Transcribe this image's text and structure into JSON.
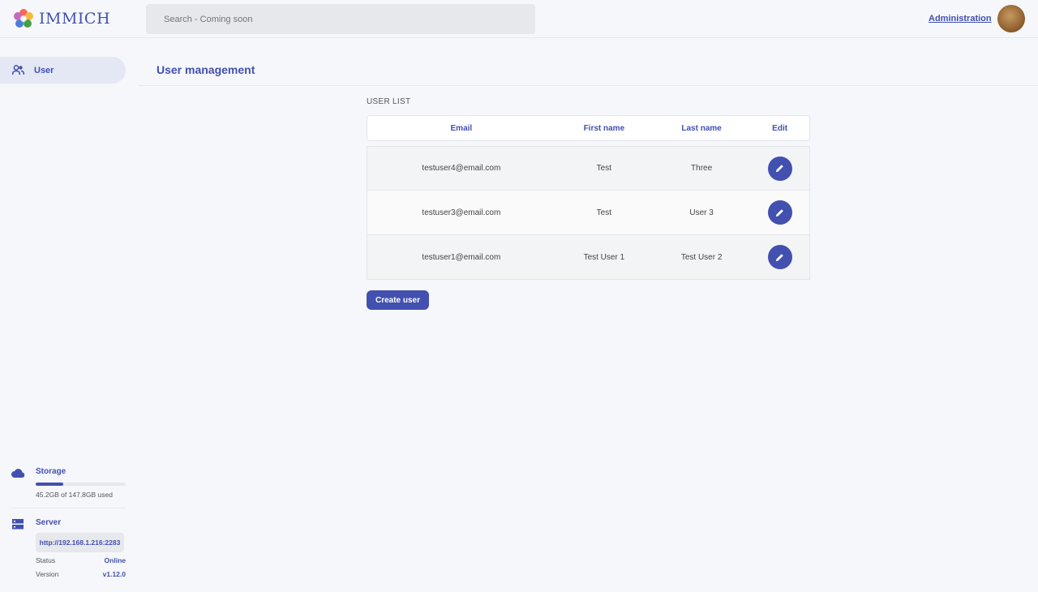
{
  "header": {
    "logo_text": "IMMICH",
    "search_placeholder": "Search - Coming soon",
    "admin_link": "Administration"
  },
  "sidebar": {
    "items": [
      {
        "label": "User",
        "icon": "users-icon"
      }
    ]
  },
  "main": {
    "title": "User management",
    "section_label": "USER LIST",
    "columns": [
      "Email",
      "First name",
      "Last name",
      "Edit"
    ],
    "rows": [
      {
        "email": "testuser4@email.com",
        "first": "Test",
        "last": "Three"
      },
      {
        "email": "testuser3@email.com",
        "first": "Test",
        "last": "User 3"
      },
      {
        "email": "testuser1@email.com",
        "first": "Test User 1",
        "last": "Test User 2"
      }
    ],
    "create_button": "Create user"
  },
  "storage": {
    "label": "Storage",
    "used_text": "45.2GB of 147.8GB used",
    "used_fraction": 0.306
  },
  "server": {
    "label": "Server",
    "url": "http://192.168.1.216:2283",
    "status_label": "Status",
    "status": "Online",
    "version_label": "Version",
    "version": "v1.12.0"
  },
  "colors": {
    "accent": "#4250af"
  }
}
